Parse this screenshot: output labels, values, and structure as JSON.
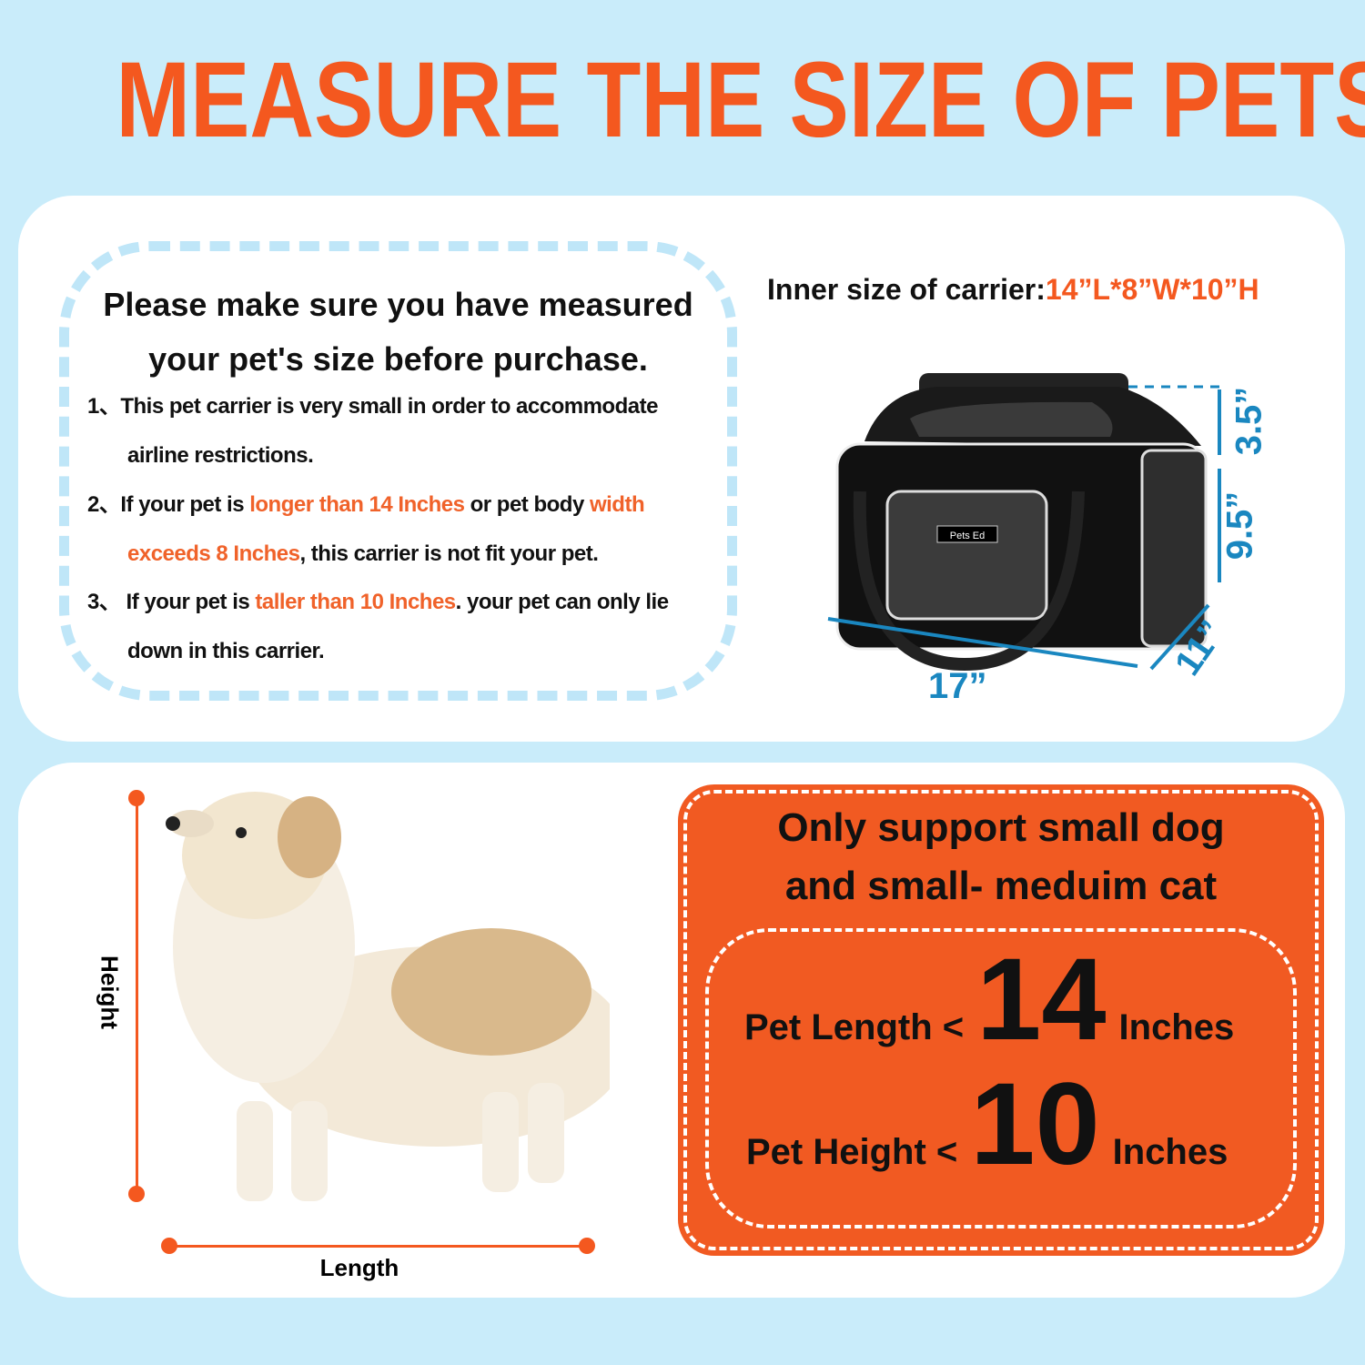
{
  "title": "MEASURE THE SIZE OF PETS",
  "notice": {
    "heading_line1": "Please make sure you have measured",
    "heading_line2": "your pet's size before purchase.",
    "rules": [
      {
        "num": "1、",
        "parts": [
          "This pet carrier is very small in order  to accommodate",
          "airline restrictions."
        ]
      },
      {
        "num": "2、",
        "a": "If your pet is ",
        "b": "longer than 14 Inches",
        "c": " or pet body ",
        "d": "width",
        "e": "exceeds 8 Inches",
        ",f": "",
        "f": ", this carrier is not fit your pet."
      },
      {
        "num": "3、",
        "a": " If your pet is ",
        "b": "taller than 10 Inches",
        "c": ". your pet can only lie",
        "d": "down in this carrier."
      }
    ]
  },
  "carrier": {
    "inner_label": "Inner size of carrier:",
    "inner_value": "14”L*8”W*10”H",
    "brand": "Pets Ed",
    "dims": {
      "top": "3.5”",
      "height": "9.5”",
      "width": "11”",
      "length": "17”"
    }
  },
  "pet": {
    "height_label": "Height",
    "length_label": "Length"
  },
  "support": {
    "line1": "Only support small dog",
    "line2": "and small- meduim cat",
    "length_label": "Pet Length <",
    "length_value": "14",
    "height_label": "Pet Height <",
    "height_value": "10",
    "unit": "Inches"
  },
  "colors": {
    "orange": "#f4581f",
    "blue": "#1a87c0",
    "background": "#c9ecfa"
  }
}
